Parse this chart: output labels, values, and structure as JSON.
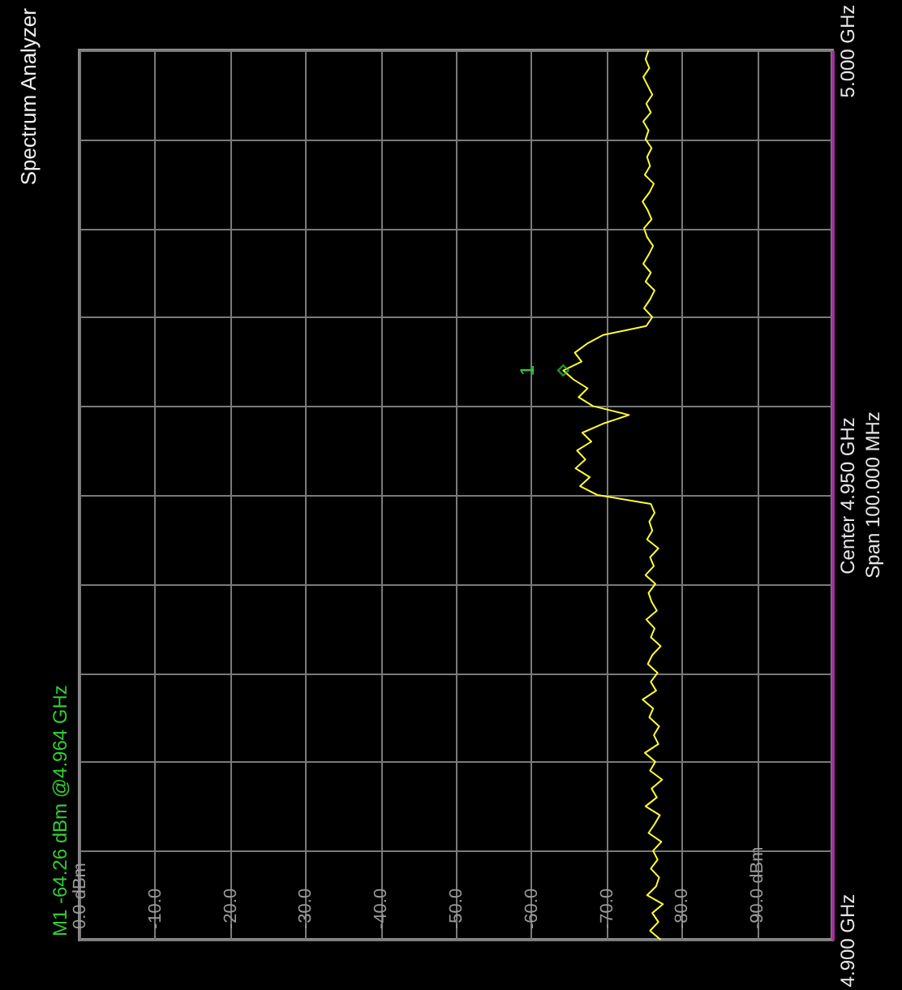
{
  "chart_data": {
    "type": "line",
    "title": "Spectrum Analyzer",
    "series": [
      {
        "color": "#ffff33",
        "x": [
          -77.2,
          -75.8,
          -76.9,
          -76.1,
          -77.5,
          -75.4,
          -76.6,
          -77.0,
          -75.9,
          -76.8,
          -76.2,
          -77.3,
          -75.6,
          -76.4,
          -77.1,
          -75.2,
          -76.7,
          -76.0,
          -77.4,
          -75.8,
          -76.5,
          -75.1,
          -76.9,
          -76.3,
          -77.0,
          -75.7,
          -76.2,
          -74.8,
          -76.6,
          -75.9,
          -76.8,
          -75.5,
          -76.1,
          -77.2,
          -75.9,
          -76.4,
          -75.3,
          -76.7,
          -76.0,
          -75.6,
          -76.5,
          -75.2,
          -76.3,
          -75.8,
          -76.9,
          -75.4,
          -76.1,
          -75.7,
          -76.4,
          -75.9,
          -68.8,
          -66.5,
          -67.8,
          -65.9,
          -67.2,
          -66.1,
          -68.0,
          -66.8,
          -69.5,
          -73.0,
          -68.2,
          -66.3,
          -67.5,
          -65.6,
          -64.26,
          -66.7,
          -65.8,
          -67.4,
          -69.6,
          -75.3,
          -76.1,
          -75.0,
          -75.8,
          -76.4,
          -75.2,
          -75.9,
          -74.9,
          -75.6,
          -76.2,
          -75.4,
          -75.0,
          -76.0,
          -75.5,
          -74.8,
          -75.7,
          -76.3,
          -75.1,
          -75.8,
          -75.4,
          -76.0,
          -75.2,
          -75.6,
          -74.9,
          -75.9,
          -75.3,
          -76.1,
          -75.5,
          -74.9,
          -75.7,
          -75.2,
          -75.6
        ],
        "values": [
          4.9,
          4.901,
          4.902,
          4.903,
          4.904,
          4.905,
          4.906,
          4.907,
          4.908,
          4.909,
          4.91,
          4.911,
          4.912,
          4.913,
          4.914,
          4.915,
          4.916,
          4.917,
          4.918,
          4.919,
          4.92,
          4.921,
          4.922,
          4.923,
          4.924,
          4.925,
          4.926,
          4.927,
          4.928,
          4.929,
          4.93,
          4.931,
          4.932,
          4.933,
          4.934,
          4.935,
          4.936,
          4.937,
          4.938,
          4.939,
          4.94,
          4.941,
          4.942,
          4.943,
          4.944,
          4.945,
          4.946,
          4.947,
          4.948,
          4.949,
          4.95,
          4.951,
          4.952,
          4.953,
          4.954,
          4.955,
          4.956,
          4.957,
          4.958,
          4.959,
          4.96,
          4.961,
          4.962,
          4.963,
          4.964,
          4.965,
          4.966,
          4.967,
          4.968,
          4.969,
          4.97,
          4.971,
          4.972,
          4.973,
          4.974,
          4.975,
          4.976,
          4.977,
          4.978,
          4.979,
          4.98,
          4.981,
          4.982,
          4.983,
          4.984,
          4.985,
          4.986,
          4.987,
          4.988,
          4.989,
          4.99,
          4.991,
          4.992,
          4.993,
          4.994,
          4.995,
          4.996,
          4.997,
          4.998,
          4.999,
          5.0
        ]
      }
    ],
    "xlim": [
      0,
      -100
    ],
    "xticks": [
      {
        "value": 0,
        "label": "0.0 dBm"
      },
      {
        "value": -10,
        "label": "-10.0"
      },
      {
        "value": -20,
        "label": "-20.0"
      },
      {
        "value": -30,
        "label": "-30.0"
      },
      {
        "value": -40,
        "label": "-40.0"
      },
      {
        "value": -50,
        "label": "-50.0"
      },
      {
        "value": -60,
        "label": "-60.0"
      },
      {
        "value": -70,
        "label": "-70.0"
      },
      {
        "value": -80,
        "label": "-80.0"
      },
      {
        "value": -90,
        "label": "-90.0 dBm"
      }
    ],
    "ylim": [
      4.9,
      5.0
    ],
    "yticks": [
      {
        "value": 4.9,
        "label": "4.900 GHz"
      },
      {
        "value": 4.91,
        "label": null
      },
      {
        "value": 4.92,
        "label": null
      },
      {
        "value": 4.93,
        "label": null
      },
      {
        "value": 4.94,
        "label": null
      },
      {
        "value": 4.95,
        "label": "Center 4.950 GHz"
      },
      {
        "value": 4.96,
        "label": null
      },
      {
        "value": 4.97,
        "label": null
      },
      {
        "value": 4.98,
        "label": null
      },
      {
        "value": 4.99,
        "label": null
      },
      {
        "value": 5.0,
        "label": "5.000 GHz"
      }
    ],
    "grid": true,
    "marker": "none",
    "line_style": "solid",
    "annotations": [
      "M1 -64.26 dBm @4.964 GHz",
      "Span 100.000 MHz",
      {
        "text": "1",
        "x": -64.26,
        "y": 4.964
      }
    ]
  }
}
